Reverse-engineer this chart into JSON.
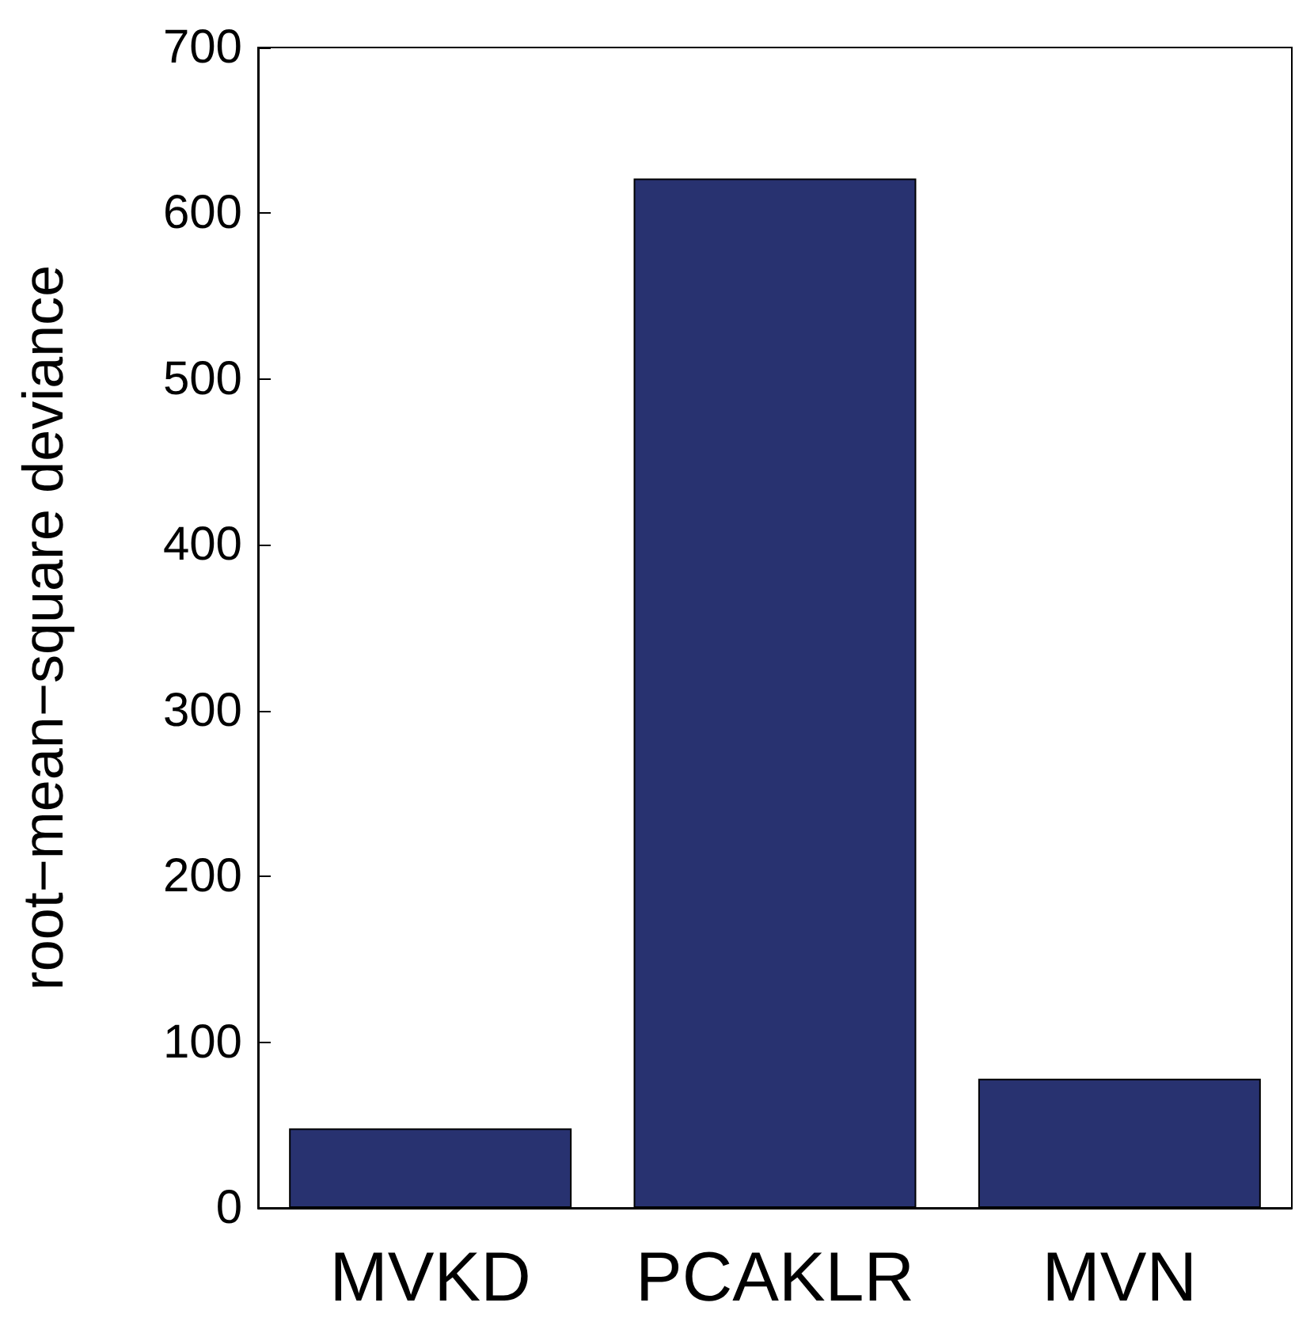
{
  "chart_data": {
    "type": "bar",
    "ylabel": "root−mean−square deviance",
    "categories": [
      "MVKD",
      "PCAKLR",
      "MVN"
    ],
    "values": [
      48,
      621,
      78
    ],
    "color": "#283270",
    "ylim": [
      0,
      700
    ],
    "yticks": [
      0,
      100,
      200,
      300,
      400,
      500,
      600,
      700
    ],
    "grid": false
  }
}
